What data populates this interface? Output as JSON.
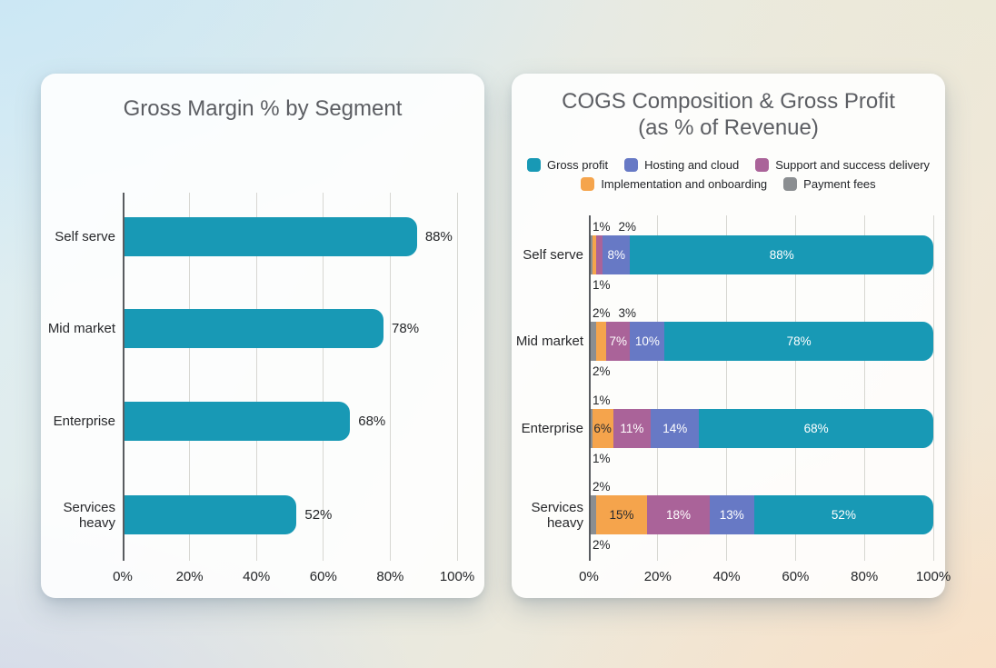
{
  "styles": {
    "accent_teal": "#1899b5",
    "background_corners": {
      "top_left": "#cfe8f4",
      "top_right": "#ece9da",
      "bottom_left": "#d2d8e9",
      "bottom_right": "#f8e3cd"
    },
    "card_color": "#ffffff",
    "title_color": "#5c5e63",
    "gridline_color": "#d7d7d2",
    "axis_color": "#595c60"
  },
  "chart_data": [
    {
      "id": "gross_margin",
      "type": "bar",
      "orientation": "horizontal",
      "title": "Gross Margin % by Segment",
      "categories": [
        "Self serve",
        "Mid market",
        "Enterprise",
        "Services heavy"
      ],
      "values": [
        88,
        78,
        68,
        52
      ],
      "data_labels": [
        "88%",
        "78%",
        "68%",
        "52%"
      ],
      "xlabel": "",
      "ylabel": "",
      "xlim": [
        0,
        100
      ],
      "x_ticks": [
        "0%",
        "20%",
        "40%",
        "60%",
        "80%",
        "100%"
      ],
      "grid": "vertical",
      "legend": "none",
      "bar_color": "#1899b5"
    },
    {
      "id": "cogs_composition",
      "type": "bar",
      "orientation": "horizontal",
      "stacked": true,
      "title": "COGS Composition & Gross Profit",
      "subtitle": "(as % of Revenue)",
      "categories": [
        "Self serve",
        "Mid market",
        "Enterprise",
        "Services heavy"
      ],
      "series": [
        {
          "name": "Payment fees",
          "color": "#8b8e91",
          "values": [
            1,
            2,
            1,
            2
          ]
        },
        {
          "name": "Implementation and onboarding",
          "color": "#f5a44c",
          "values": [
            1,
            3,
            6,
            15
          ]
        },
        {
          "name": "Support and success delivery",
          "color": "#aa6399",
          "values": [
            2,
            7,
            11,
            18
          ]
        },
        {
          "name": "Hosting and cloud",
          "color": "#6779c5",
          "values": [
            8,
            10,
            14,
            13
          ]
        },
        {
          "name": "Gross profit",
          "color": "#1899b5",
          "values": [
            88,
            78,
            68,
            52
          ]
        }
      ],
      "legend_rows": [
        [
          "Gross profit",
          "Hosting and cloud",
          "Support and success delivery"
        ],
        [
          "Implementation and onboarding",
          "Payment fees"
        ]
      ],
      "outside_labels": {
        "above": [
          [
            "1%",
            "2%"
          ],
          [
            "2%",
            "3%"
          ],
          [
            "1%"
          ],
          [
            "2%"
          ]
        ],
        "below": [
          [
            "1%"
          ],
          [
            "2%"
          ],
          [
            "1%"
          ],
          [
            "2%"
          ]
        ]
      },
      "xlabel": "",
      "ylabel": "",
      "xlim": [
        0,
        100
      ],
      "x_ticks": [
        "0%",
        "20%",
        "40%",
        "60%",
        "80%",
        "100%"
      ],
      "grid": "vertical",
      "legend": "top"
    }
  ]
}
